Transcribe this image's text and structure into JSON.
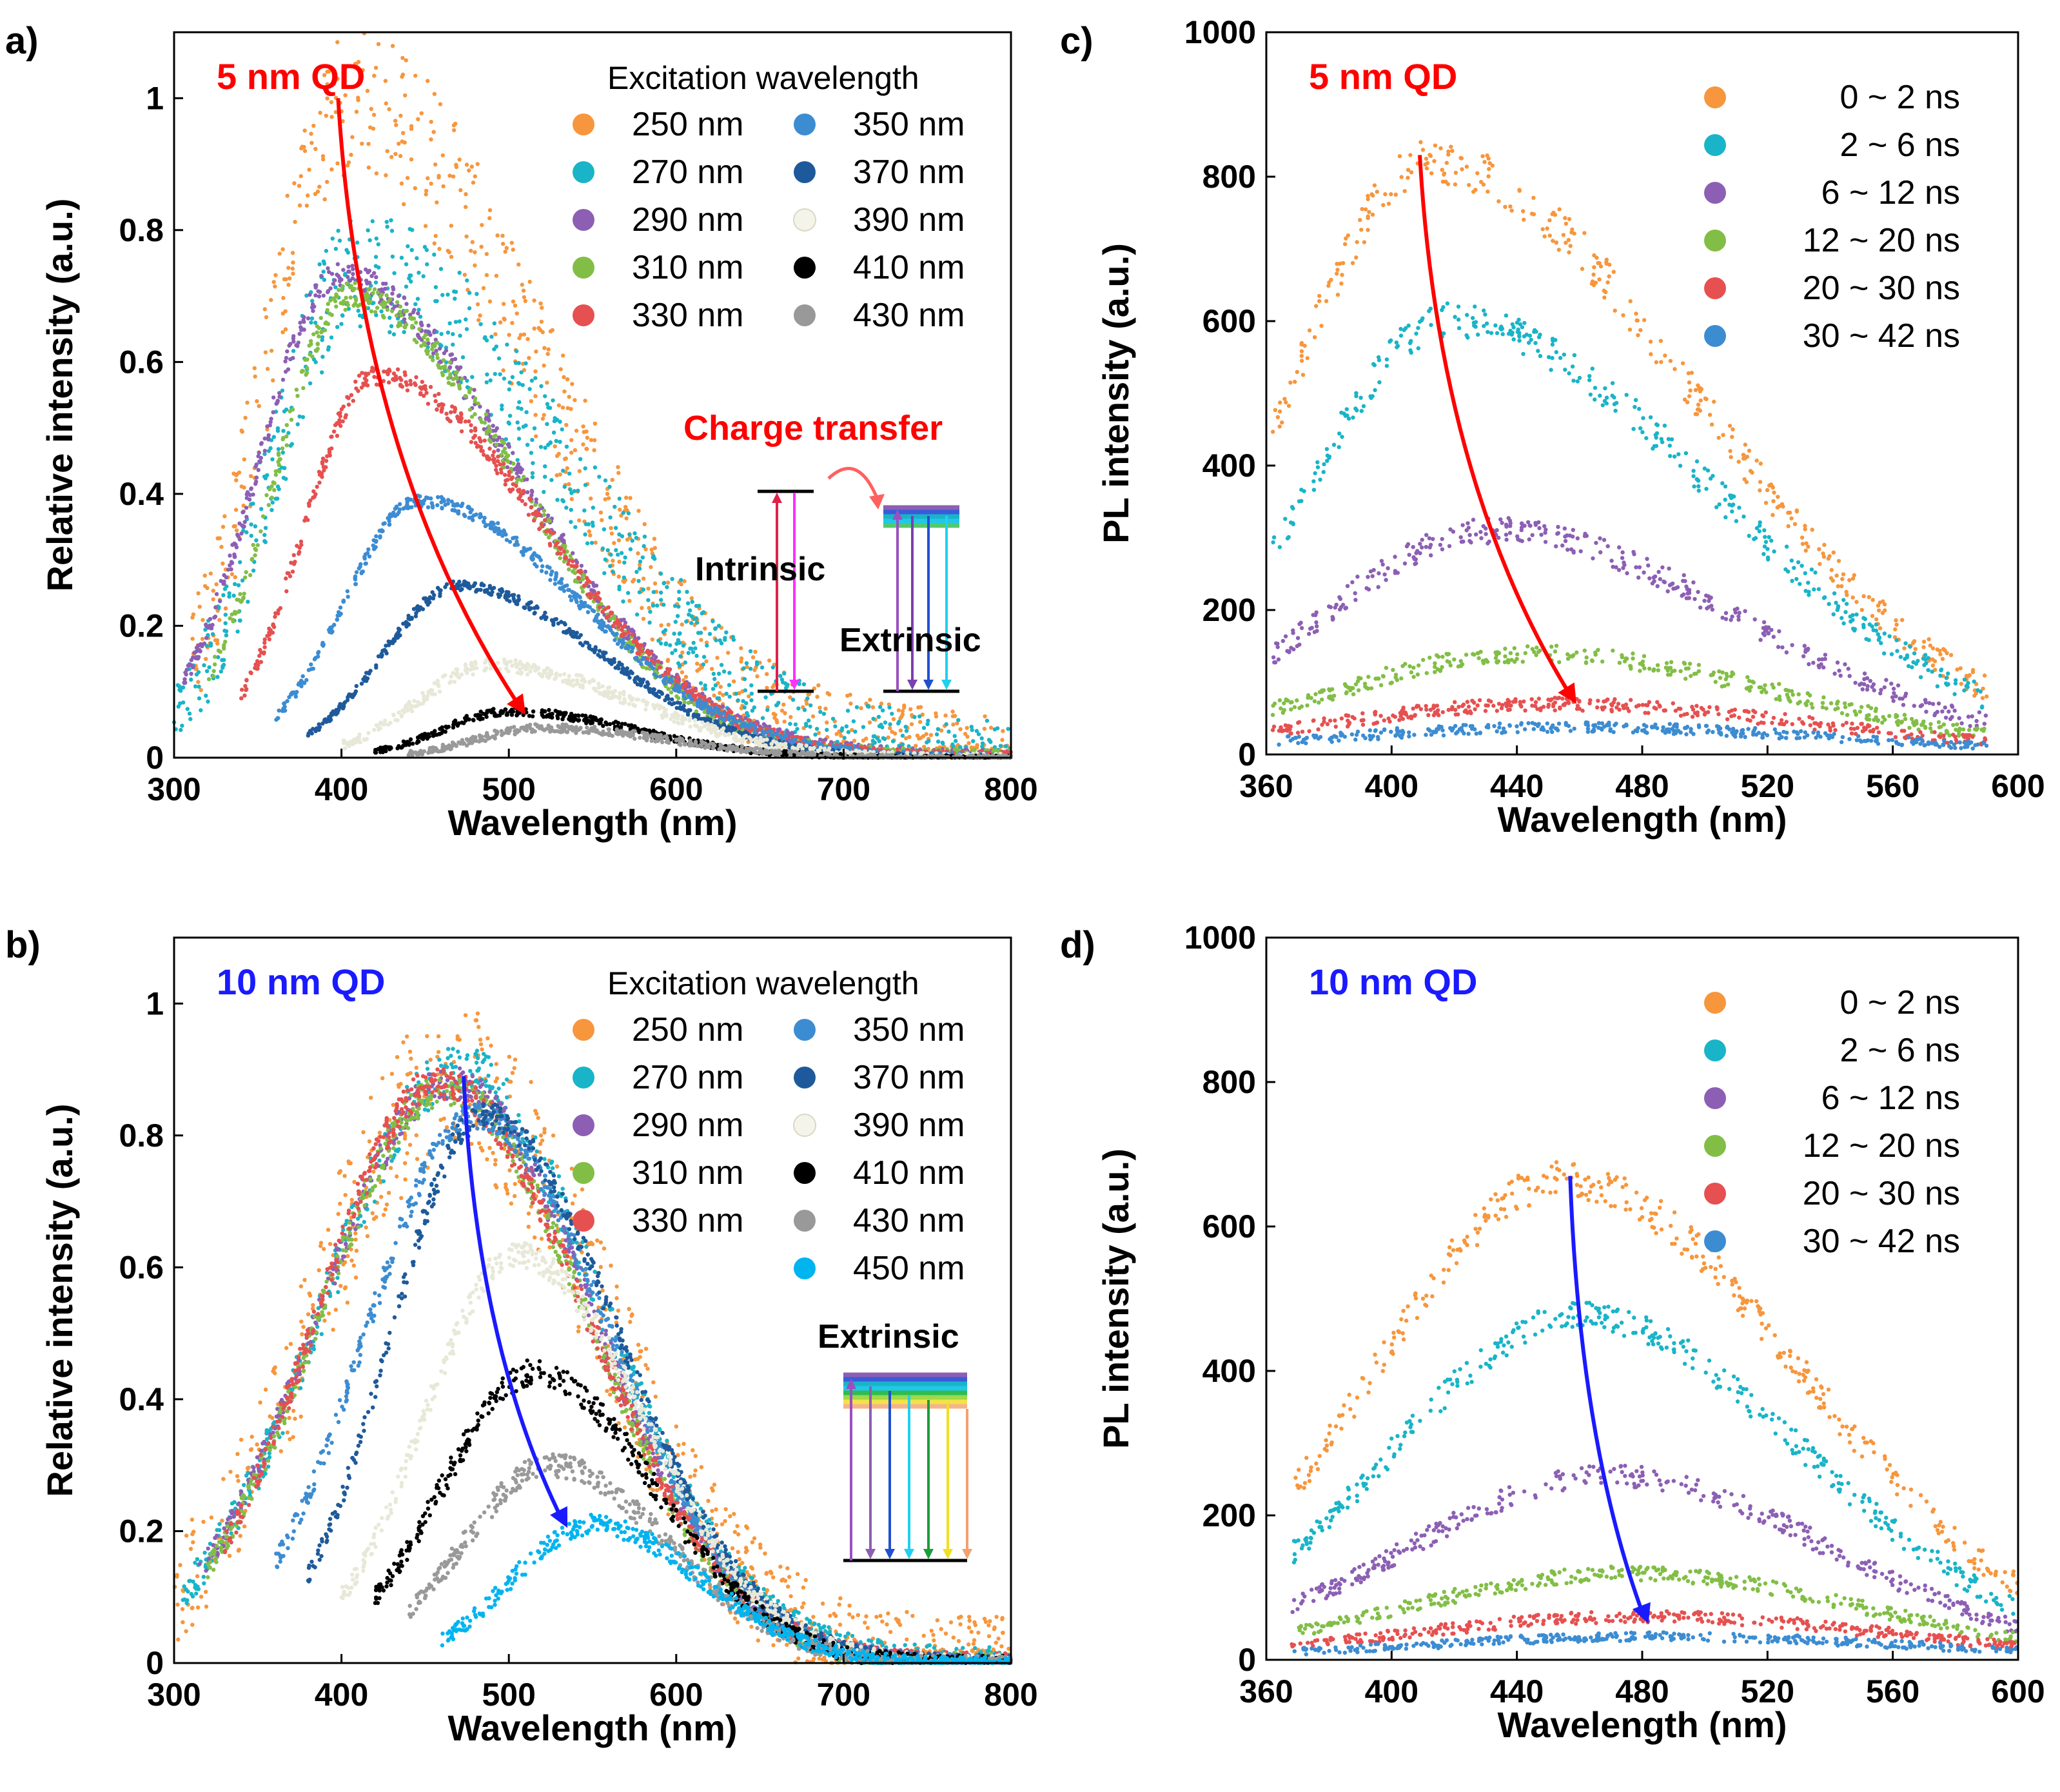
{
  "figure": {
    "colors": {
      "exc": {
        "250nm": "#f7963c",
        "270nm": "#19b4c8",
        "290nm": "#8c5fb4",
        "310nm": "#82be46",
        "330nm": "#e65050",
        "350nm": "#3c8cd2",
        "370nm": "#1e5a9b",
        "390nm": "#e8e8d8",
        "410nm": "#000000",
        "430nm": "#999999",
        "450nm": "#00b4f0"
      },
      "time": {
        "0~2ns": "#f7963c",
        "2~6ns": "#19b4c8",
        "6~12ns": "#8c5fb4",
        "12~20ns": "#82be46",
        "20~30ns": "#e65050",
        "30~42ns": "#3c8cd2"
      },
      "arrow_red": "#ff0000",
      "arrow_blue": "#1a1aff"
    },
    "panels": {
      "a": {
        "label": "a)",
        "sample": "5 nm QD",
        "legend_title": "Excitation wavelength",
        "charge_transfer": "Charge transfer",
        "intrinsic": "Intrinsic",
        "extrinsic": "Extrinsic"
      },
      "b": {
        "label": "b)",
        "sample": "10 nm QD",
        "legend_title": "Excitation wavelength",
        "extrinsic": "Extrinsic"
      },
      "c": {
        "label": "c)",
        "sample": "5 nm QD"
      },
      "d": {
        "label": "d)",
        "sample": "10 nm QD"
      }
    }
  },
  "chart_data": [
    {
      "id": "a",
      "type": "scatter",
      "xlabel": "Wavelength (nm)",
      "ylabel": "Relative intensity (a.u.)",
      "xlim": [
        300,
        800
      ],
      "ylim": [
        0,
        1.1
      ],
      "xticks": [
        300,
        400,
        500,
        600,
        700,
        800
      ],
      "yticks": [
        0,
        0.2,
        0.4,
        0.6,
        0.8,
        1
      ],
      "ytick_labels": [
        "0",
        "0.2",
        "0.4",
        "0.6",
        "0.8",
        "1"
      ],
      "legend_columns": 2,
      "series": [
        {
          "name": "250 nm",
          "color_key": "250nm",
          "peak_x": 405,
          "peak_y": 1.0,
          "start_x": 310,
          "end_x": 800,
          "sig_l": 48,
          "sig_r": 110,
          "noise": 0.12
        },
        {
          "name": "270 nm",
          "color_key": "270nm",
          "peak_x": 410,
          "peak_y": 0.74,
          "start_x": 300,
          "end_x": 800,
          "sig_l": 50,
          "sig_r": 120,
          "noise": 0.09
        },
        {
          "name": "290 nm",
          "color_key": "290nm",
          "peak_x": 398,
          "peak_y": 0.73,
          "start_x": 305,
          "end_x": 800,
          "sig_l": 48,
          "sig_r": 105,
          "noise": 0.02
        },
        {
          "name": "310 nm",
          "color_key": "310nm",
          "peak_x": 405,
          "peak_y": 0.7,
          "start_x": 320,
          "end_x": 800,
          "sig_l": 45,
          "sig_r": 100,
          "noise": 0.02
        },
        {
          "name": "330 nm",
          "color_key": "330nm",
          "peak_x": 420,
          "peak_y": 0.58,
          "start_x": 340,
          "end_x": 800,
          "sig_l": 42,
          "sig_r": 100,
          "noise": 0.015
        },
        {
          "name": "350 nm",
          "color_key": "350nm",
          "peak_x": 447,
          "peak_y": 0.39,
          "start_x": 360,
          "end_x": 800,
          "sig_l": 45,
          "sig_r": 95,
          "noise": 0.01
        },
        {
          "name": "370 nm",
          "color_key": "370nm",
          "peak_x": 470,
          "peak_y": 0.26,
          "start_x": 380,
          "end_x": 800,
          "sig_l": 45,
          "sig_r": 85,
          "noise": 0.008
        },
        {
          "name": "390 nm",
          "color_key": "390nm",
          "peak_x": 490,
          "peak_y": 0.14,
          "start_x": 400,
          "end_x": 800,
          "sig_l": 45,
          "sig_r": 85,
          "noise": 0.01
        },
        {
          "name": "410 nm",
          "color_key": "410nm",
          "peak_x": 500,
          "peak_y": 0.07,
          "start_x": 420,
          "end_x": 800,
          "sig_l": 40,
          "sig_r": 75,
          "noise": 0.006
        },
        {
          "name": "430 nm",
          "color_key": "430nm",
          "peak_x": 520,
          "peak_y": 0.045,
          "start_x": 440,
          "end_x": 800,
          "sig_l": 40,
          "sig_r": 75,
          "noise": 0.006
        }
      ],
      "arrow": {
        "from": [
          398,
          1.0
        ],
        "to": [
          510,
          0.065
        ],
        "color_key": "arrow_red"
      }
    },
    {
      "id": "b",
      "type": "scatter",
      "xlabel": "Wavelength (nm)",
      "ylabel": "Relative intensity (a.u.)",
      "xlim": [
        300,
        800
      ],
      "ylim": [
        0,
        1.1
      ],
      "xticks": [
        300,
        400,
        500,
        600,
        700,
        800
      ],
      "yticks": [
        0,
        0.2,
        0.4,
        0.6,
        0.8,
        1
      ],
      "ytick_labels": [
        "0",
        "0.2",
        "0.4",
        "0.6",
        "0.8",
        "1"
      ],
      "legend_columns": 2,
      "series": [
        {
          "name": "250 nm",
          "color_key": "250nm",
          "peak_x": 465,
          "peak_y": 0.88,
          "start_x": 300,
          "end_x": 800,
          "sig_l": 80,
          "sig_r": 90,
          "noise": 0.12
        },
        {
          "name": "270 nm",
          "color_key": "270nm",
          "peak_x": 470,
          "peak_y": 0.9,
          "start_x": 305,
          "end_x": 800,
          "sig_l": 80,
          "sig_r": 85,
          "noise": 0.04
        },
        {
          "name": "290 nm",
          "color_key": "290nm",
          "peak_x": 465,
          "peak_y": 0.88,
          "start_x": 315,
          "end_x": 800,
          "sig_l": 78,
          "sig_r": 85,
          "noise": 0.025
        },
        {
          "name": "310 nm",
          "color_key": "310nm",
          "peak_x": 462,
          "peak_y": 0.87,
          "start_x": 320,
          "end_x": 800,
          "sig_l": 75,
          "sig_r": 85,
          "noise": 0.025
        },
        {
          "name": "330 nm",
          "color_key": "330nm",
          "peak_x": 458,
          "peak_y": 0.88,
          "start_x": 330,
          "end_x": 800,
          "sig_l": 72,
          "sig_r": 88,
          "noise": 0.025
        },
        {
          "name": "350 nm",
          "color_key": "350nm",
          "peak_x": 480,
          "peak_y": 0.83,
          "start_x": 360,
          "end_x": 800,
          "sig_l": 65,
          "sig_r": 80,
          "noise": 0.02
        },
        {
          "name": "370 nm",
          "color_key": "370nm",
          "peak_x": 485,
          "peak_y": 0.83,
          "start_x": 380,
          "end_x": 800,
          "sig_l": 55,
          "sig_r": 80,
          "noise": 0.02
        },
        {
          "name": "390 nm",
          "color_key": "390nm",
          "peak_x": 505,
          "peak_y": 0.62,
          "start_x": 400,
          "end_x": 800,
          "sig_l": 55,
          "sig_r": 75,
          "noise": 0.02
        },
        {
          "name": "410 nm",
          "color_key": "410nm",
          "peak_x": 515,
          "peak_y": 0.44,
          "start_x": 420,
          "end_x": 800,
          "sig_l": 55,
          "sig_r": 72,
          "noise": 0.02
        },
        {
          "name": "430 nm",
          "color_key": "430nm",
          "peak_x": 525,
          "peak_y": 0.3,
          "start_x": 440,
          "end_x": 800,
          "sig_l": 52,
          "sig_r": 70,
          "noise": 0.018
        },
        {
          "name": "450 nm",
          "color_key": "450nm",
          "peak_x": 550,
          "peak_y": 0.21,
          "start_x": 460,
          "end_x": 800,
          "sig_l": 48,
          "sig_r": 65,
          "noise": 0.015
        }
      ],
      "arrow": {
        "from": [
          473,
          0.89
        ],
        "to": [
          535,
          0.205
        ],
        "color_key": "arrow_blue"
      }
    },
    {
      "id": "c",
      "type": "scatter",
      "xlabel": "Wavelength (nm)",
      "ylabel": "PL intensity (a.u.)",
      "xlim": [
        360,
        600
      ],
      "ylim": [
        0,
        1000
      ],
      "xticks": [
        360,
        400,
        440,
        480,
        520,
        560,
        600
      ],
      "yticks": [
        0,
        200,
        400,
        600,
        800,
        1000
      ],
      "ytick_labels": [
        "0",
        "200",
        "400",
        "600",
        "800",
        "1000"
      ],
      "legend_columns": 1,
      "series": [
        {
          "name": "0 ~ 2 ns",
          "color_key": "0~2ns",
          "peak_x": 412,
          "peak_y": 820,
          "start_x": 362,
          "end_x": 590,
          "sig_l": 45,
          "sig_r": 85,
          "noise": 30
        },
        {
          "name": "2 ~ 6 ns",
          "color_key": "2~6ns",
          "peak_x": 418,
          "peak_y": 600,
          "start_x": 362,
          "end_x": 590,
          "sig_l": 45,
          "sig_r": 85,
          "noise": 25
        },
        {
          "name": "6 ~ 12 ns",
          "color_key": "6~12ns",
          "peak_x": 432,
          "peak_y": 310,
          "start_x": 362,
          "end_x": 590,
          "sig_l": 55,
          "sig_r": 80,
          "noise": 18
        },
        {
          "name": "12 ~ 20 ns",
          "color_key": "12~20ns",
          "peak_x": 445,
          "peak_y": 140,
          "start_x": 362,
          "end_x": 590,
          "sig_l": 65,
          "sig_r": 80,
          "noise": 12
        },
        {
          "name": "20 ~ 30 ns",
          "color_key": "20~30ns",
          "peak_x": 450,
          "peak_y": 70,
          "start_x": 362,
          "end_x": 590,
          "sig_l": 70,
          "sig_r": 85,
          "noise": 9
        },
        {
          "name": "30 ~ 42 ns",
          "color_key": "30~42ns",
          "peak_x": 455,
          "peak_y": 38,
          "start_x": 362,
          "end_x": 590,
          "sig_l": 75,
          "sig_r": 90,
          "noise": 7
        }
      ],
      "arrow": {
        "from": [
          409,
          830
        ],
        "to": [
          459,
          70
        ],
        "color_key": "arrow_red"
      }
    },
    {
      "id": "d",
      "type": "scatter",
      "xlabel": "Wavelength (nm)",
      "ylabel": "PL intensity (a.u.)",
      "xlim": [
        360,
        600
      ],
      "ylim": [
        0,
        1000
      ],
      "xticks": [
        360,
        400,
        440,
        480,
        520,
        560,
        600
      ],
      "yticks": [
        0,
        200,
        400,
        600,
        800,
        1000
      ],
      "ytick_labels": [
        "0",
        "200",
        "400",
        "600",
        "800",
        "1000"
      ],
      "legend_columns": 1,
      "series": [
        {
          "name": "0 ~ 2 ns",
          "color_key": "0~2ns",
          "peak_x": 455,
          "peak_y": 665,
          "start_x": 368,
          "end_x": 600,
          "sig_l": 60,
          "sig_r": 75,
          "noise": 25
        },
        {
          "name": "2 ~ 6 ns",
          "color_key": "2~6ns",
          "peak_x": 460,
          "peak_y": 475,
          "start_x": 368,
          "end_x": 600,
          "sig_l": 60,
          "sig_r": 72,
          "noise": 20
        },
        {
          "name": "6 ~ 12 ns",
          "color_key": "6~12ns",
          "peak_x": 470,
          "peak_y": 255,
          "start_x": 368,
          "end_x": 600,
          "sig_l": 65,
          "sig_r": 70,
          "noise": 15
        },
        {
          "name": "12 ~ 20 ns",
          "color_key": "12~20ns",
          "peak_x": 475,
          "peak_y": 120,
          "start_x": 368,
          "end_x": 600,
          "sig_l": 70,
          "sig_r": 75,
          "noise": 10
        },
        {
          "name": "20 ~ 30 ns",
          "color_key": "20~30ns",
          "peak_x": 480,
          "peak_y": 60,
          "start_x": 368,
          "end_x": 600,
          "sig_l": 75,
          "sig_r": 80,
          "noise": 8
        },
        {
          "name": "30 ~ 42 ns",
          "color_key": "30~42ns",
          "peak_x": 485,
          "peak_y": 32,
          "start_x": 368,
          "end_x": 600,
          "sig_l": 80,
          "sig_r": 85,
          "noise": 6
        }
      ],
      "arrow": {
        "from": [
          457,
          670
        ],
        "to": [
          482,
          50
        ],
        "color_key": "arrow_blue"
      }
    }
  ]
}
